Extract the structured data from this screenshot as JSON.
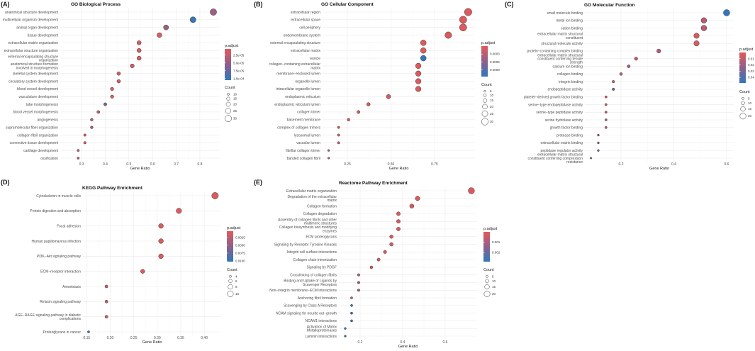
{
  "color_scale": {
    "low": "#e25a5a",
    "high": "#2f78bd"
  },
  "chart_data": [
    {
      "id": "A",
      "letter": "(A)",
      "type": "scatter",
      "title": "GO Biological Process",
      "xlabel": "Gene Ratio",
      "xlim": [
        0.21,
        0.884
      ],
      "xticks": [
        0.3,
        0.4,
        0.5,
        0.6,
        0.7,
        0.8
      ],
      "xtick_labels": [
        "0.3",
        "0.4",
        "0.5",
        "0.6",
        "0.7",
        "0.8"
      ],
      "color_legend": {
        "title": "p.adjust",
        "range": [
          5e-06,
          0.000105
        ],
        "ticks": [
          2.5e-05,
          5e-05,
          7.5e-05,
          0.0001
        ],
        "tick_labels": [
          "2.5e-05",
          "5.0e-05",
          "7.5e-05",
          "1.0e-04"
        ]
      },
      "size_legend": {
        "title": "Count",
        "values": [
          10,
          15,
          20,
          25,
          30
        ],
        "labels": [
          "10",
          "15",
          "20",
          "25",
          "30"
        ]
      },
      "points": [
        {
          "term": "anatomical structure development",
          "ratio": 0.857,
          "count": 30,
          "p_adjust": 4.5e-05
        },
        {
          "term": "multicellular organism development",
          "ratio": 0.771,
          "count": 27,
          "p_adjust": 0.0001
        },
        {
          "term": "animal organ development",
          "ratio": 0.657,
          "count": 23,
          "p_adjust": 4.5e-05
        },
        {
          "term": "tissue development",
          "ratio": 0.629,
          "count": 22,
          "p_adjust": 1e-05
        },
        {
          "term": "extracellular matrix organization",
          "ratio": 0.543,
          "count": 19,
          "p_adjust": 1e-05
        },
        {
          "term": "extracellular structure organization",
          "ratio": 0.543,
          "count": 19,
          "p_adjust": 1e-05
        },
        {
          "term": "external encapsulating structure\norganization",
          "ratio": 0.543,
          "count": 19,
          "p_adjust": 1e-05
        },
        {
          "term": "anatomical structure formation\ninvolved in morphogenesis",
          "ratio": 0.514,
          "count": 18,
          "p_adjust": 1.5e-05
        },
        {
          "term": "skeletal system development",
          "ratio": 0.457,
          "count": 16,
          "p_adjust": 1e-05
        },
        {
          "term": "circulatory system development",
          "ratio": 0.457,
          "count": 16,
          "p_adjust": 1e-05
        },
        {
          "term": "blood vessel development",
          "ratio": 0.429,
          "count": 15,
          "p_adjust": 1e-05
        },
        {
          "term": "vasculature development",
          "ratio": 0.429,
          "count": 15,
          "p_adjust": 1e-05
        },
        {
          "term": "tube morphogenesis",
          "ratio": 0.4,
          "count": 14,
          "p_adjust": 6e-05
        },
        {
          "term": "blood vessel morphogenesis",
          "ratio": 0.371,
          "count": 13,
          "p_adjust": 2.2e-05
        },
        {
          "term": "angiogenesis",
          "ratio": 0.343,
          "count": 12,
          "p_adjust": 3e-05
        },
        {
          "term": "supramolecular fiber organization",
          "ratio": 0.343,
          "count": 12,
          "p_adjust": 3e-05
        },
        {
          "term": "collagen fibril organization",
          "ratio": 0.314,
          "count": 11,
          "p_adjust": 1e-05
        },
        {
          "term": "connective tissue development",
          "ratio": 0.314,
          "count": 11,
          "p_adjust": 1.2e-05
        },
        {
          "term": "cartilage development",
          "ratio": 0.286,
          "count": 10,
          "p_adjust": 1.5e-05
        },
        {
          "term": "ossification",
          "ratio": 0.286,
          "count": 10,
          "p_adjust": 4e-05
        }
      ]
    },
    {
      "id": "B",
      "letter": "(B)",
      "type": "scatter",
      "title": "GO Cellular Component",
      "xlabel": "Gene Ratio",
      "xlim": [
        0.108,
        0.982
      ],
      "xticks": [
        0.25,
        0.5,
        0.75
      ],
      "xtick_labels": [
        "0.25",
        "0.50",
        "0.75"
      ],
      "color_legend": {
        "title": "p.adjust",
        "range": [
          0.0,
          0.00115
        ],
        "ticks": [
          0.0003,
          0.0006,
          0.0009
        ],
        "tick_labels": [
          "0.0003",
          "0.0006",
          "0.0009"
        ]
      },
      "size_legend": {
        "title": "Count",
        "values": [
          5,
          10,
          15,
          20,
          25,
          30
        ],
        "labels": [
          "5",
          "10",
          "15",
          "20",
          "25",
          "30"
        ]
      },
      "points": [
        {
          "term": "extracellular region",
          "ratio": 0.943,
          "count": 33,
          "p_adjust": 3e-05
        },
        {
          "term": "extracellular space",
          "ratio": 0.914,
          "count": 32,
          "p_adjust": 3e-05
        },
        {
          "term": "cell periphery",
          "ratio": 0.914,
          "count": 32,
          "p_adjust": 5e-05
        },
        {
          "term": "endomembrane system",
          "ratio": 0.829,
          "count": 29,
          "p_adjust": 5e-05
        },
        {
          "term": "external encapsulating structure",
          "ratio": 0.686,
          "count": 24,
          "p_adjust": 3e-05
        },
        {
          "term": "extracellular matrix",
          "ratio": 0.686,
          "count": 24,
          "p_adjust": 3e-05
        },
        {
          "term": "vesicle",
          "ratio": 0.686,
          "count": 24,
          "p_adjust": 0.00112
        },
        {
          "term": "collagen−containing extracellular\nmatrix",
          "ratio": 0.657,
          "count": 23,
          "p_adjust": 3e-05
        },
        {
          "term": "membrane−enclosed lumen",
          "ratio": 0.657,
          "count": 23,
          "p_adjust": 5e-05
        },
        {
          "term": "organelle lumen",
          "ratio": 0.657,
          "count": 23,
          "p_adjust": 5e-05
        },
        {
          "term": "intracellular organelle lumen",
          "ratio": 0.657,
          "count": 23,
          "p_adjust": 5e-05
        },
        {
          "term": "endoplasmic reticulum",
          "ratio": 0.486,
          "count": 17,
          "p_adjust": 8e-05
        },
        {
          "term": "endoplasmic reticulum lumen",
          "ratio": 0.371,
          "count": 13,
          "p_adjust": 5e-05
        },
        {
          "term": "collagen trimer",
          "ratio": 0.314,
          "count": 11,
          "p_adjust": 3e-05
        },
        {
          "term": "basement membrane",
          "ratio": 0.257,
          "count": 9,
          "p_adjust": 5e-05
        },
        {
          "term": "complex of collagen trimers",
          "ratio": 0.2,
          "count": 7,
          "p_adjust": 5e-05
        },
        {
          "term": "lysosomal lumen",
          "ratio": 0.2,
          "count": 7,
          "p_adjust": 8e-05
        },
        {
          "term": "vacuolar lumen",
          "ratio": 0.2,
          "count": 7,
          "p_adjust": 0.0001
        },
        {
          "term": "fibrillar collagen trimer",
          "ratio": 0.143,
          "count": 5,
          "p_adjust": 0.0003
        },
        {
          "term": "banded collagen fibril",
          "ratio": 0.143,
          "count": 5,
          "p_adjust": 0.0003
        }
      ]
    },
    {
      "id": "C",
      "letter": "(C)",
      "type": "scatter",
      "title": "GO Molecular Function",
      "xlabel": "Gene Ratio",
      "xlim": [
        0.063,
        0.627
      ],
      "xticks": [
        0.2,
        0.4,
        0.6
      ],
      "xtick_labels": [
        "0.2",
        "0.4",
        "0.6"
      ],
      "color_legend": {
        "title": "p.adjust",
        "range": [
          0.0,
          0.049
        ],
        "ticks": [
          0.01,
          0.02,
          0.03,
          0.04
        ],
        "tick_labels": [
          "0.01",
          "0.02",
          "0.03",
          "0.04"
        ]
      },
      "size_legend": {
        "title": "Count",
        "values": [
          5,
          10,
          15,
          20
        ],
        "labels": [
          "5",
          "10",
          "15",
          "20"
        ]
      },
      "points": [
        {
          "term": "small molecule binding",
          "ratio": 0.6,
          "count": 21,
          "p_adjust": 0.048
        },
        {
          "term": "metal ion binding",
          "ratio": 0.514,
          "count": 18,
          "p_adjust": 0.012
        },
        {
          "term": "cation binding",
          "ratio": 0.514,
          "count": 18,
          "p_adjust": 0.012
        },
        {
          "term": "extracellular matrix structural\nconstituent",
          "ratio": 0.486,
          "count": 17,
          "p_adjust": 0.003
        },
        {
          "term": "structural molecule activity",
          "ratio": 0.486,
          "count": 17,
          "p_adjust": 0.003
        },
        {
          "term": "protein−containing complex binding",
          "ratio": 0.343,
          "count": 12,
          "p_adjust": 0.012
        },
        {
          "term": "extracellular matrix structural\nconstituent conferring tensile\nstrength",
          "ratio": 0.257,
          "count": 9,
          "p_adjust": 0.006
        },
        {
          "term": "calcium ion binding",
          "ratio": 0.229,
          "count": 8,
          "p_adjust": 0.016
        },
        {
          "term": "collagen binding",
          "ratio": 0.2,
          "count": 7,
          "p_adjust": 0.004
        },
        {
          "term": "integrin binding",
          "ratio": 0.171,
          "count": 6,
          "p_adjust": 0.012
        },
        {
          "term": "endopeptidase activity",
          "ratio": 0.171,
          "count": 6,
          "p_adjust": 0.03
        },
        {
          "term": "platelet−derived growth factor binding",
          "ratio": 0.143,
          "count": 5,
          "p_adjust": 0.005
        },
        {
          "term": "serine−type endopeptidase activity",
          "ratio": 0.143,
          "count": 5,
          "p_adjust": 0.012
        },
        {
          "term": "serine−type peptidase activity",
          "ratio": 0.143,
          "count": 5,
          "p_adjust": 0.012
        },
        {
          "term": "serine hydrolase activity",
          "ratio": 0.143,
          "count": 5,
          "p_adjust": 0.012
        },
        {
          "term": "growth factor binding",
          "ratio": 0.143,
          "count": 5,
          "p_adjust": 0.01
        },
        {
          "term": "protease binding",
          "ratio": 0.114,
          "count": 4,
          "p_adjust": 0.02
        },
        {
          "term": "extracellular matrix binding",
          "ratio": 0.114,
          "count": 4,
          "p_adjust": 0.02
        },
        {
          "term": "peptidase regulator activity",
          "ratio": 0.114,
          "count": 4,
          "p_adjust": 0.038
        },
        {
          "term": "extracellular matrix structural\nconstituent conferring compression\nresistance",
          "ratio": 0.086,
          "count": 3,
          "p_adjust": 0.026
        }
      ]
    },
    {
      "id": "D",
      "letter": "(D)",
      "type": "scatter",
      "title": "KEGG Pathway Enrichment",
      "xlabel": "Gene Ratio",
      "xlim": [
        0.142,
        0.436
      ],
      "xticks": [
        0.15,
        0.2,
        0.25,
        0.3,
        0.35,
        0.4
      ],
      "xtick_labels": [
        "0.15",
        "0.20",
        "0.25",
        "0.30",
        "0.35",
        "0.40"
      ],
      "color_legend": {
        "title": "p.adjust",
        "range": [
          0.0005,
          0.0102
        ],
        "ticks": [
          0.0025,
          0.005,
          0.0075,
          0.01
        ],
        "tick_labels": [
          "0.0025",
          "0.0050",
          "0.0075",
          "0.0100"
        ]
      },
      "size_legend": {
        "title": "Count",
        "values": [
          4,
          6,
          8,
          10
        ],
        "labels": [
          "4",
          "6",
          "8",
          "10"
        ]
      },
      "points": [
        {
          "term": "Cytoskeleton in muscle cells",
          "ratio": 0.423,
          "count": 11,
          "p_adjust": 0.0008
        },
        {
          "term": "Protein digestion and absorption",
          "ratio": 0.346,
          "count": 9,
          "p_adjust": 0.0008
        },
        {
          "term": "Focal adhesion",
          "ratio": 0.308,
          "count": 8,
          "p_adjust": 0.0008
        },
        {
          "term": "Human papillomavirus infection",
          "ratio": 0.308,
          "count": 8,
          "p_adjust": 0.0008
        },
        {
          "term": "PI3K−Akt signaling pathway",
          "ratio": 0.308,
          "count": 8,
          "p_adjust": 0.0008
        },
        {
          "term": "ECM−receptor interaction",
          "ratio": 0.269,
          "count": 7,
          "p_adjust": 0.0008
        },
        {
          "term": "Amoebiasis",
          "ratio": 0.192,
          "count": 5,
          "p_adjust": 0.0015
        },
        {
          "term": "Relaxin signaling pathway",
          "ratio": 0.192,
          "count": 5,
          "p_adjust": 0.002
        },
        {
          "term": "AGE−RAGE signaling pathway in diabetic\ncomplications",
          "ratio": 0.192,
          "count": 5,
          "p_adjust": 0.0015
        },
        {
          "term": "Proteoglycans in cancer",
          "ratio": 0.154,
          "count": 4,
          "p_adjust": 0.0101
        }
      ]
    },
    {
      "id": "E",
      "letter": "(E)",
      "type": "scatter",
      "title": "Reactome Pathway Enrichment",
      "xlabel": "Gene Ratio",
      "xlim": [
        0.1,
        0.75
      ],
      "xticks": [
        0.2,
        0.4,
        0.6
      ],
      "xtick_labels": [
        "0.2",
        "0.4",
        "0.6"
      ],
      "color_legend": {
        "title": "p.adjust",
        "range": [
          0.0,
          0.0029
        ],
        "ticks": [
          0.001,
          0.002
        ],
        "tick_labels": [
          "0.001",
          "0.002"
        ]
      },
      "size_legend": {
        "title": "Count",
        "values": [
          5,
          10,
          15,
          20
        ],
        "labels": [
          "5",
          "10",
          "15",
          "20"
        ]
      },
      "points": [
        {
          "term": "Extracellular matrix organization",
          "ratio": 0.723,
          "count": 21,
          "p_adjust": 0.0001
        },
        {
          "term": "Degradation of the extracellular\nmatrix",
          "ratio": 0.47,
          "count": 14,
          "p_adjust": 0.0001
        },
        {
          "term": "Collagen formation",
          "ratio": 0.443,
          "count": 13,
          "p_adjust": 0.0001
        },
        {
          "term": "Collagen degradation",
          "ratio": 0.38,
          "count": 11,
          "p_adjust": 0.0001
        },
        {
          "term": "Assembly of collagen fibrils and other\nmultimeric structures",
          "ratio": 0.38,
          "count": 11,
          "p_adjust": 0.0001
        },
        {
          "term": "Collagen biosynthesis and modifying\nenzymes",
          "ratio": 0.38,
          "count": 11,
          "p_adjust": 0.0001
        },
        {
          "term": "ECM proteoglycans",
          "ratio": 0.347,
          "count": 10,
          "p_adjust": 0.0001
        },
        {
          "term": "Signaling by Receptor Tyrosine Kinases",
          "ratio": 0.347,
          "count": 10,
          "p_adjust": 0.0002
        },
        {
          "term": "Integrin cell surface interactions",
          "ratio": 0.317,
          "count": 9,
          "p_adjust": 0.0001
        },
        {
          "term": "Collagen chain trimerization",
          "ratio": 0.287,
          "count": 8,
          "p_adjust": 0.0001
        },
        {
          "term": "Signaling by PDGF",
          "ratio": 0.253,
          "count": 7,
          "p_adjust": 0.0001
        },
        {
          "term": "Crosslinking of collagen fibrils",
          "ratio": 0.193,
          "count": 6,
          "p_adjust": 0.0006
        },
        {
          "term": "Binding and Uptake of Ligands by\nScavenger Receptors",
          "ratio": 0.193,
          "count": 6,
          "p_adjust": 0.0009
        },
        {
          "term": "Non−integrin membrane−ECM interactions",
          "ratio": 0.193,
          "count": 6,
          "p_adjust": 0.0009
        },
        {
          "term": "Anchoring fibril formation",
          "ratio": 0.16,
          "count": 5,
          "p_adjust": 0.0006
        },
        {
          "term": "Scavenging by Class A Receptors",
          "ratio": 0.16,
          "count": 5,
          "p_adjust": 0.0028
        },
        {
          "term": "NCAM signaling for neurite out−growth",
          "ratio": 0.16,
          "count": 5,
          "p_adjust": 0.0028
        },
        {
          "term": "NCAM1 interactions",
          "ratio": 0.16,
          "count": 5,
          "p_adjust": 0.0028
        },
        {
          "term": "Activation of Matrix\nMetalloproteinases",
          "ratio": 0.13,
          "count": 4,
          "p_adjust": 0.0028
        },
        {
          "term": "Laminin interactions",
          "ratio": 0.13,
          "count": 4,
          "p_adjust": 0.0028
        }
      ]
    }
  ]
}
